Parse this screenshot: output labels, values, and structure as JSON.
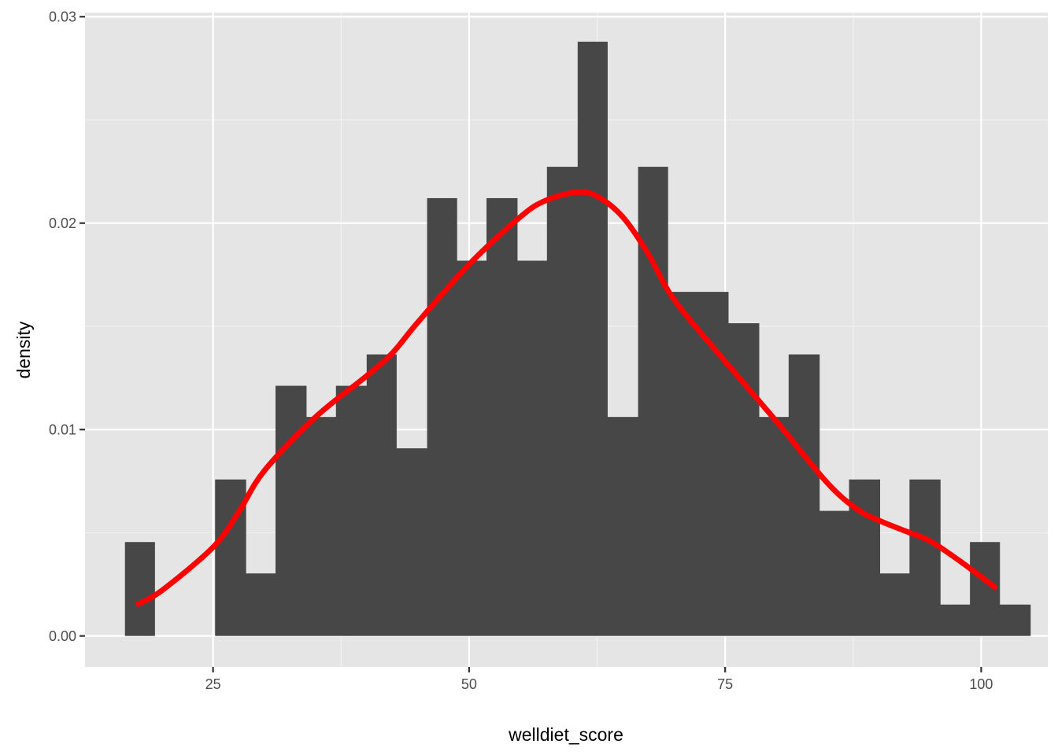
{
  "chart_data": {
    "type": "histogram",
    "xlabel": "welldiet_score",
    "ylabel": "density",
    "xlim": [
      12.5,
      106.5
    ],
    "ylim": [
      -0.0015,
      0.0302
    ],
    "x_ticks": [
      25,
      50,
      75,
      100
    ],
    "x_tick_labels": [
      "25",
      "50",
      "75",
      "100"
    ],
    "y_ticks": [
      0.0,
      0.01,
      0.02,
      0.03
    ],
    "y_tick_labels": [
      "0.00",
      "0.01",
      "0.02",
      "0.03"
    ],
    "grid": true,
    "bins": [
      {
        "x0": 16.4,
        "x1": 19.3,
        "density": 0.00455
      },
      {
        "x0": 19.3,
        "x1": 22.3,
        "density": 0.0
      },
      {
        "x0": 22.3,
        "x1": 25.2,
        "density": 0.0
      },
      {
        "x0": 25.2,
        "x1": 28.2,
        "density": 0.00758
      },
      {
        "x0": 28.2,
        "x1": 31.1,
        "density": 0.00303
      },
      {
        "x0": 31.1,
        "x1": 34.1,
        "density": 0.01212
      },
      {
        "x0": 34.1,
        "x1": 37.0,
        "density": 0.01061
      },
      {
        "x0": 37.0,
        "x1": 40.0,
        "density": 0.01212
      },
      {
        "x0": 40.0,
        "x1": 42.9,
        "density": 0.01364
      },
      {
        "x0": 42.9,
        "x1": 45.9,
        "density": 0.00909
      },
      {
        "x0": 45.9,
        "x1": 48.8,
        "density": 0.02121
      },
      {
        "x0": 48.8,
        "x1": 51.7,
        "density": 0.01818
      },
      {
        "x0": 51.7,
        "x1": 54.7,
        "density": 0.02121
      },
      {
        "x0": 54.7,
        "x1": 57.6,
        "density": 0.01818
      },
      {
        "x0": 57.6,
        "x1": 60.6,
        "density": 0.02273
      },
      {
        "x0": 60.6,
        "x1": 63.5,
        "density": 0.02879
      },
      {
        "x0": 63.5,
        "x1": 66.5,
        "density": 0.01061
      },
      {
        "x0": 66.5,
        "x1": 69.4,
        "density": 0.02273
      },
      {
        "x0": 69.4,
        "x1": 72.4,
        "density": 0.01667
      },
      {
        "x0": 72.4,
        "x1": 75.3,
        "density": 0.01667
      },
      {
        "x0": 75.3,
        "x1": 78.3,
        "density": 0.01515
      },
      {
        "x0": 78.3,
        "x1": 81.2,
        "density": 0.01061
      },
      {
        "x0": 81.2,
        "x1": 84.2,
        "density": 0.01364
      },
      {
        "x0": 84.2,
        "x1": 87.1,
        "density": 0.00606
      },
      {
        "x0": 87.1,
        "x1": 90.1,
        "density": 0.00758
      },
      {
        "x0": 90.1,
        "x1": 93.0,
        "density": 0.00303
      },
      {
        "x0": 93.0,
        "x1": 96.0,
        "density": 0.00758
      },
      {
        "x0": 96.0,
        "x1": 98.9,
        "density": 0.00152
      },
      {
        "x0": 98.9,
        "x1": 101.8,
        "density": 0.00455
      },
      {
        "x0": 101.8,
        "x1": 104.8,
        "density": 0.00152
      }
    ],
    "density_curve": {
      "x": [
        17.5,
        20,
        25,
        27.5,
        30,
        35,
        40,
        42.5,
        45,
        50,
        55,
        57.5,
        60.5,
        62.5,
        65,
        67.5,
        70,
        75,
        80,
        85,
        88,
        90,
        92.5,
        95,
        98,
        101.5
      ],
      "y": [
        0.0015,
        0.0022,
        0.0043,
        0.006,
        0.008,
        0.0106,
        0.0126,
        0.0137,
        0.0152,
        0.018,
        0.0203,
        0.0211,
        0.0215,
        0.0213,
        0.0203,
        0.0185,
        0.0163,
        0.0133,
        0.0104,
        0.0074,
        0.0061,
        0.0056,
        0.0051,
        0.0046,
        0.0036,
        0.0023
      ]
    },
    "colors": {
      "panel_background": "#e5e5e5",
      "grid_major": "#ffffff",
      "grid_minor": "#f2f2f2",
      "bar_fill": "#474747",
      "density_line": "#ff0000"
    }
  }
}
